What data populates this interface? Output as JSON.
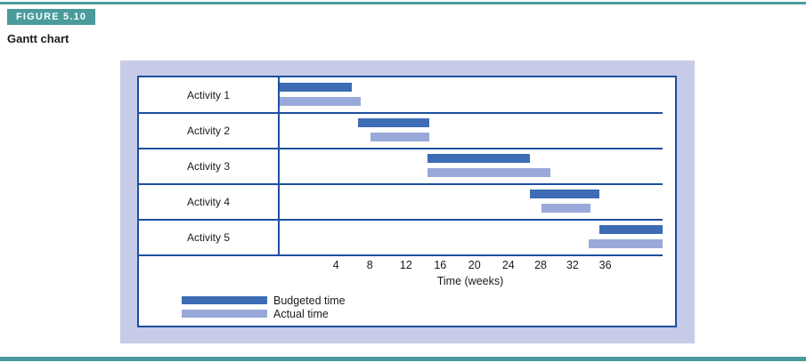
{
  "figure": {
    "tag": "FIGURE 5.10",
    "title": "Gantt chart"
  },
  "colors": {
    "teal": "#4a9b9c",
    "panel": "#c6cbe8",
    "line": "#1d4f9f",
    "budgeted": "#3d6cb4",
    "actual": "#99a9d9",
    "ink": "#1b1b1b"
  },
  "chart_data": {
    "type": "bar",
    "subtype": "gantt",
    "title": "Gantt chart",
    "xlabel": "Time (weeks)",
    "xlim": [
      0,
      44
    ],
    "grid": false,
    "legend_position": "bottom-left",
    "legend": [
      {
        "label": "Budgeted time",
        "color_key": "budgeted"
      },
      {
        "label": "Actual time",
        "color_key": "actual"
      }
    ],
    "x_ticks": {
      "values": [
        4,
        8,
        12,
        16,
        20,
        24,
        28,
        32,
        36
      ],
      "pct": [
        15.1,
        23.9,
        33.3,
        42.2,
        51.1,
        59.9,
        68.3,
        76.6,
        85.1
      ]
    },
    "activities": [
      {
        "label": "Activity 1",
        "budgeted_weeks": [
          0,
          6
        ],
        "actual_weeks": [
          0,
          7
        ],
        "budgeted_pct": [
          0,
          19.3
        ],
        "actual_pct": [
          0,
          21.6
        ]
      },
      {
        "label": "Activity 2",
        "budgeted_weeks": [
          7,
          15
        ],
        "actual_weeks": [
          8,
          15
        ],
        "budgeted_pct": [
          20.9,
          39.4
        ],
        "actual_pct": [
          24.1,
          39.4
        ]
      },
      {
        "label": "Activity 3",
        "budgeted_weeks": [
          15,
          27
        ],
        "actual_weeks": [
          15,
          29
        ],
        "budgeted_pct": [
          39.0,
          65.6
        ],
        "actual_pct": [
          39.0,
          70.9
        ]
      },
      {
        "label": "Activity 4",
        "budgeted_weeks": [
          27,
          35
        ],
        "actual_weeks": [
          28,
          34
        ],
        "budgeted_pct": [
          65.4,
          83.5
        ],
        "actual_pct": [
          68.6,
          81.2
        ]
      },
      {
        "label": "Activity 5",
        "budgeted_weeks": [
          35,
          43
        ],
        "actual_weeks": [
          34,
          43
        ],
        "budgeted_pct": [
          83.5,
          100
        ],
        "actual_pct": [
          80.7,
          100
        ]
      }
    ]
  }
}
